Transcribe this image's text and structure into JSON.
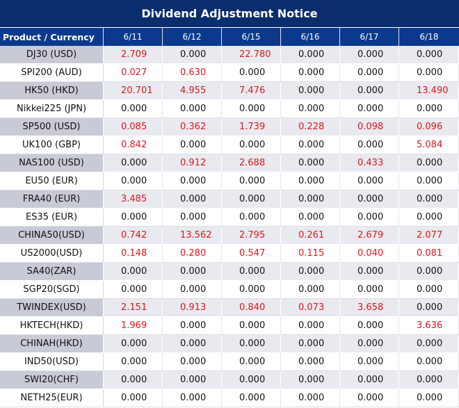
{
  "title": "Dividend Adjustment Notice",
  "header": {
    "product_label": "Product / Currency",
    "dates": [
      "6/11",
      "6/12",
      "6/15",
      "6/16",
      "6/17",
      "6/18"
    ]
  },
  "colors": {
    "title_bg": "#0a2d6e",
    "header_bg": "#0b3a8c",
    "positive_value": "#e3141b",
    "zero_value": "#111111",
    "band_product": "#c8cbd6",
    "band_value": "#e8eaef"
  },
  "rows": [
    {
      "product": "DJ30 (USD)",
      "values": [
        "2.709",
        "0.000",
        "22.780",
        "0.000",
        "0.000",
        "0.000"
      ]
    },
    {
      "product": "SPI200 (AUD)",
      "values": [
        "0.027",
        "0.630",
        "0.000",
        "0.000",
        "0.000",
        "0.000"
      ]
    },
    {
      "product": "HK50 (HKD)",
      "values": [
        "20.701",
        "4.955",
        "7.476",
        "0.000",
        "0.000",
        "13.490"
      ]
    },
    {
      "product": "Nikkei225 (JPN)",
      "values": [
        "0.000",
        "0.000",
        "0.000",
        "0.000",
        "0.000",
        "0.000"
      ]
    },
    {
      "product": "SP500 (USD)",
      "values": [
        "0.085",
        "0.362",
        "1.739",
        "0.228",
        "0.098",
        "0.096"
      ]
    },
    {
      "product": "UK100 (GBP)",
      "values": [
        "0.842",
        "0.000",
        "0.000",
        "0.000",
        "0.000",
        "5.084"
      ]
    },
    {
      "product": "NAS100 (USD)",
      "values": [
        "0.000",
        "0.912",
        "2.688",
        "0.000",
        "0.433",
        "0.000"
      ]
    },
    {
      "product": "EU50 (EUR)",
      "values": [
        "0.000",
        "0.000",
        "0.000",
        "0.000",
        "0.000",
        "0.000"
      ]
    },
    {
      "product": "FRA40 (EUR)",
      "values": [
        "3.485",
        "0.000",
        "0.000",
        "0.000",
        "0.000",
        "0.000"
      ]
    },
    {
      "product": "ES35 (EUR)",
      "values": [
        "0.000",
        "0.000",
        "0.000",
        "0.000",
        "0.000",
        "0.000"
      ]
    },
    {
      "product": "CHINA50(USD)",
      "values": [
        "0.742",
        "13.562",
        "2.795",
        "0.261",
        "2.679",
        "2.077"
      ]
    },
    {
      "product": "US2000(USD)",
      "values": [
        "0.148",
        "0.280",
        "0.547",
        "0.115",
        "0.040",
        "0.081"
      ]
    },
    {
      "product": "SA40(ZAR)",
      "values": [
        "0.000",
        "0.000",
        "0.000",
        "0.000",
        "0.000",
        "0.000"
      ]
    },
    {
      "product": "SGP20(SGD)",
      "values": [
        "0.000",
        "0.000",
        "0.000",
        "0.000",
        "0.000",
        "0.000"
      ]
    },
    {
      "product": "TWINDEX(USD)",
      "values": [
        "2.151",
        "0.913",
        "0.840",
        "0.073",
        "3.658",
        "0.000"
      ]
    },
    {
      "product": "HKTECH(HKD)",
      "values": [
        "1.969",
        "0.000",
        "0.000",
        "0.000",
        "0.000",
        "3.636"
      ]
    },
    {
      "product": "CHINAH(HKD)",
      "values": [
        "0.000",
        "0.000",
        "0.000",
        "0.000",
        "0.000",
        "0.000"
      ]
    },
    {
      "product": "IND50(USD)",
      "values": [
        "0.000",
        "0.000",
        "0.000",
        "0.000",
        "0.000",
        "0.000"
      ]
    },
    {
      "product": "SWI20(CHF)",
      "values": [
        "0.000",
        "0.000",
        "0.000",
        "0.000",
        "0.000",
        "0.000"
      ]
    },
    {
      "product": "NETH25(EUR)",
      "values": [
        "0.000",
        "0.000",
        "0.000",
        "0.000",
        "0.000",
        "0.000"
      ]
    }
  ]
}
